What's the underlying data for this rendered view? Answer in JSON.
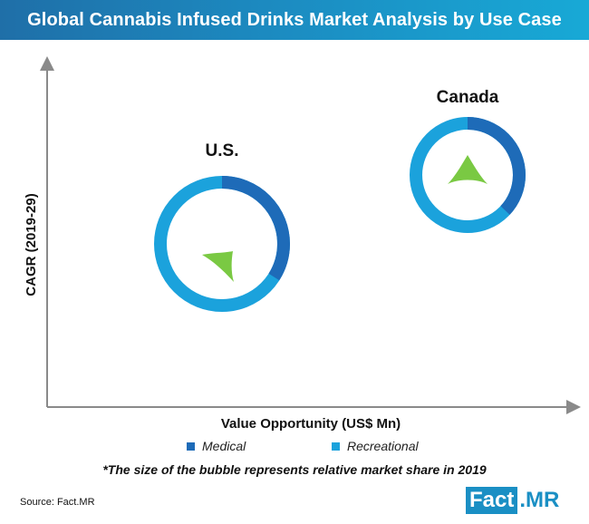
{
  "header": {
    "title": "Global Cannabis Infused Drinks Market Analysis by Use Case"
  },
  "chart_data": {
    "type": "bubble-donut",
    "xlabel": "Value Opportunity (US$ Mn)",
    "ylabel": "CAGR (2019-29)",
    "grid": false,
    "legend_position": "bottom",
    "series_names": [
      "Medical",
      "Recreational"
    ],
    "colors": {
      "Medical": "#1e6bb8",
      "Recreational": "#1ba2dc",
      "arrow": "#7ac943"
    },
    "bubbles": [
      {
        "label": "U.S.",
        "medical_share": 0.34,
        "recreational_share": 0.66,
        "relative_size": 1.0,
        "trend": "down-left"
      },
      {
        "label": "Canada",
        "medical_share": 0.37,
        "recreational_share": 0.63,
        "relative_size": 0.84,
        "trend": "up"
      }
    ]
  },
  "legend": {
    "medical": "Medical",
    "recreational": "Recreational"
  },
  "footnote": "*The size of the bubble represents relative market share in 2019",
  "source": "Source: Fact.MR",
  "logo": {
    "part1": "Fact",
    "part2": ".MR"
  }
}
